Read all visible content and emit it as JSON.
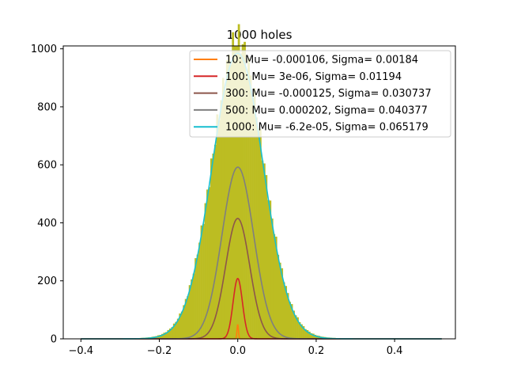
{
  "chart_data": {
    "type": "line",
    "title": "1000 holes",
    "xlabel": "",
    "ylabel": "",
    "xlim": [
      -0.445,
      0.555
    ],
    "ylim": [
      0,
      1010
    ],
    "xticks": [
      -0.4,
      -0.2,
      0.0,
      0.2,
      0.4
    ],
    "xtick_labels": [
      "−0.4",
      "−0.2",
      "0.0",
      "0.2",
      "0.4"
    ],
    "yticks": [
      0,
      200,
      400,
      600,
      800,
      1000
    ],
    "ytick_labels": [
      "0",
      "200",
      "400",
      "600",
      "800",
      "1000"
    ],
    "grid": false,
    "legend_position": "upper right",
    "histogram": {
      "color": "#bcbd22",
      "bin_range": [
        -0.4,
        0.52
      ],
      "peak": 985,
      "sigma": 0.065179
    },
    "series": [
      {
        "name": "10: Mu= -0.000106, Sigma= 0.00184",
        "mu": -0.000106,
        "sigma": 0.00184,
        "peak": 50,
        "color": "#ff7f0e"
      },
      {
        "name": "100: Mu= 3e-06, Sigma= 0.01194",
        "mu": 3e-06,
        "sigma": 0.01194,
        "peak": 208,
        "color": "#d62728"
      },
      {
        "name": "300: Mu= -0.000125, Sigma= 0.030737",
        "mu": -0.000125,
        "sigma": 0.030737,
        "peak": 415,
        "color": "#8c564b"
      },
      {
        "name": "500: Mu= 0.000202, Sigma= 0.040377",
        "mu": 0.000202,
        "sigma": 0.040377,
        "peak": 592,
        "color": "#7f7f7f"
      },
      {
        "name": "1000: Mu= -6.2e-05, Sigma= 0.065179",
        "mu": -6.2e-05,
        "sigma": 0.065179,
        "peak": 985,
        "color": "#17becf"
      }
    ]
  }
}
